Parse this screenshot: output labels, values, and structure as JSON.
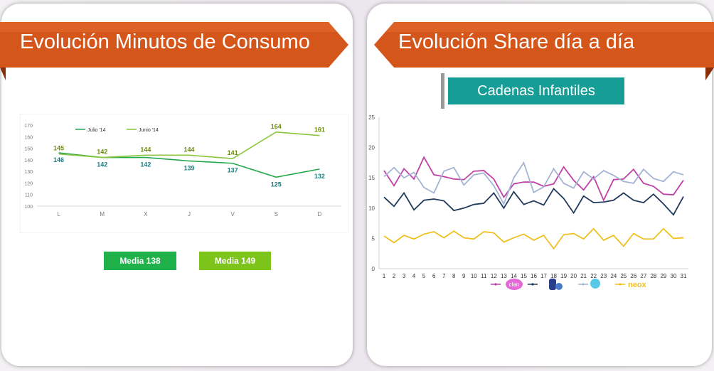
{
  "left": {
    "title": "Evolución Minutos de Consumo",
    "media1": "Media 138",
    "media2": "Media 149",
    "media1_color": "#20b14a",
    "media2_color": "#7cc31a"
  },
  "right": {
    "title": "Evolución Share día a día",
    "subtitle": "Cadenas Infantiles"
  },
  "chart_data": [
    {
      "type": "line",
      "categories": [
        "L",
        "M",
        "X",
        "J",
        "V",
        "S",
        "D"
      ],
      "ylim": [
        100,
        170
      ],
      "yticks": [
        100,
        110,
        120,
        130,
        140,
        150,
        160,
        170
      ],
      "legend_position": "top-left",
      "series": [
        {
          "name": "Julio '14",
          "color": "#22a84a",
          "label_color": "#1b7f82",
          "values": [
            146,
            142,
            142,
            139,
            137,
            125,
            132
          ]
        },
        {
          "name": "Junio '14",
          "color": "#8cc63f",
          "label_color": "#6e8c10",
          "values": [
            145,
            142,
            144,
            144,
            141,
            164,
            161
          ]
        }
      ]
    },
    {
      "type": "line",
      "x": [
        1,
        2,
        3,
        4,
        5,
        6,
        7,
        8,
        9,
        10,
        11,
        12,
        13,
        14,
        15,
        16,
        17,
        18,
        19,
        20,
        21,
        22,
        23,
        24,
        25,
        26,
        27,
        28,
        29,
        30,
        31
      ],
      "ylim": [
        0,
        25
      ],
      "yticks": [
        0,
        5,
        10,
        15,
        20,
        25
      ],
      "legend_position": "bottom",
      "series": [
        {
          "name": "clan",
          "color": "#c040a8",
          "values": [
            16.2,
            13.7,
            16.5,
            14.8,
            18.4,
            15.5,
            15.2,
            14.8,
            14.7,
            16.1,
            16.2,
            14.8,
            11.8,
            14.0,
            14.3,
            14.3,
            13.6,
            14.0,
            16.8,
            14.6,
            13.0,
            15.2,
            11.3,
            14.7,
            14.8,
            16.4,
            14.1,
            13.6,
            12.3,
            12.2,
            14.6
          ]
        },
        {
          "name": "",
          "color": "#1f3a5c",
          "values": [
            11.8,
            10.3,
            12.5,
            9.7,
            11.3,
            11.5,
            11.2,
            9.6,
            10.0,
            10.6,
            10.8,
            12.5,
            10.0,
            12.7,
            10.6,
            11.2,
            10.5,
            13.2,
            11.6,
            9.2,
            12.0,
            10.9,
            11.0,
            11.3,
            12.5,
            11.3,
            10.9,
            12.3,
            10.7,
            8.9,
            11.9
          ]
        },
        {
          "name": "",
          "color": "#a4b4d4",
          "values": [
            15.2,
            16.7,
            15.0,
            15.9,
            13.4,
            12.5,
            16.1,
            16.7,
            13.8,
            15.5,
            15.8,
            13.7,
            10.7,
            15.0,
            17.5,
            12.6,
            13.5,
            16.5,
            14.1,
            13.3,
            16.0,
            14.8,
            16.2,
            15.4,
            14.4,
            14.1,
            16.4,
            14.9,
            14.4,
            16.0,
            15.5
          ]
        },
        {
          "name": "neox",
          "color": "#f0c020",
          "values": [
            5.4,
            4.3,
            5.5,
            4.9,
            5.7,
            6.1,
            5.1,
            6.2,
            5.1,
            4.9,
            6.1,
            5.9,
            4.4,
            5.1,
            5.7,
            4.7,
            5.5,
            3.3,
            5.6,
            5.8,
            4.9,
            6.6,
            4.7,
            5.5,
            3.7,
            5.8,
            4.9,
            4.9,
            6.6,
            5.0,
            5.1
          ]
        }
      ]
    }
  ]
}
